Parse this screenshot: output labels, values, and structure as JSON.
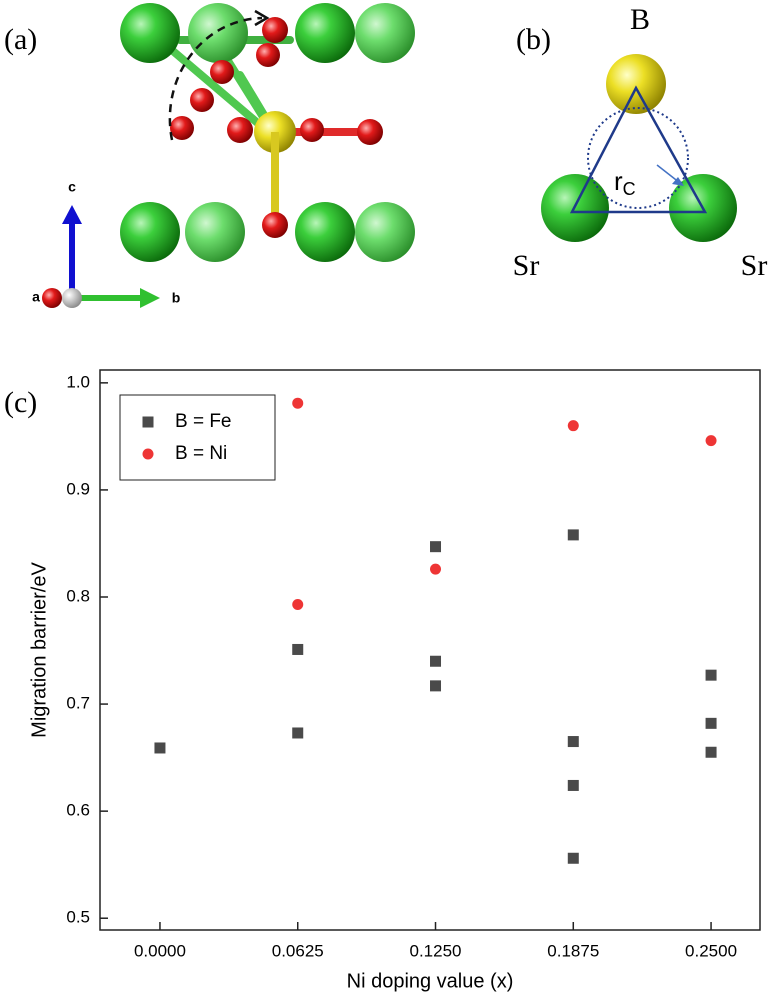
{
  "panels": {
    "a": {
      "label": "(a)",
      "axis_labels": [
        "c",
        "a",
        "b"
      ]
    },
    "b": {
      "label": "(b)",
      "top_atom": "B",
      "left_atom": "Sr",
      "right_atom": "Sr",
      "radius": "r",
      "radius_subscript": "C"
    }
  },
  "chart_data": {
    "type": "scatter",
    "label": "(c)",
    "x_label": "Ni doping value (x)",
    "y_label": "Migration barrier/eV",
    "xlim": [
      -0.0272,
      0.2722
    ],
    "ylim": [
      0.489,
      1.012
    ],
    "xticks": [
      {
        "value": 0,
        "label": "0.0000"
      },
      {
        "value": 0.0625,
        "label": "0.0625"
      },
      {
        "value": 0.125,
        "label": "0.1250"
      },
      {
        "value": 0.1875,
        "label": "0.1875"
      },
      {
        "value": 0.25,
        "label": "0.2500"
      }
    ],
    "yticks": [
      0.5,
      0.6,
      0.7,
      0.8,
      0.9,
      {
        "value": 1,
        "label": "1.0"
      }
    ],
    "legend": "upper left",
    "series": [
      {
        "name": "B = Fe",
        "color": "#4a4a4a",
        "marker": "square",
        "x": [
          0,
          0.0625,
          0.0625,
          0.125,
          0.125,
          0.125,
          0.1875,
          0.1875,
          0.1875,
          0.1875,
          0.25,
          0.25,
          0.25
        ],
        "values": [
          0.659,
          0.751,
          0.673,
          0.847,
          0.74,
          0.717,
          0.858,
          0.665,
          0.624,
          0.556,
          0.727,
          0.682,
          0.655
        ]
      },
      {
        "name": "B = Ni",
        "color": "#ee3535",
        "marker": "circle",
        "x": [
          0.0625,
          0.0625,
          0.125,
          0.1875,
          0.25
        ],
        "values": [
          0.981,
          0.793,
          0.826,
          0.96,
          0.946
        ]
      }
    ]
  }
}
